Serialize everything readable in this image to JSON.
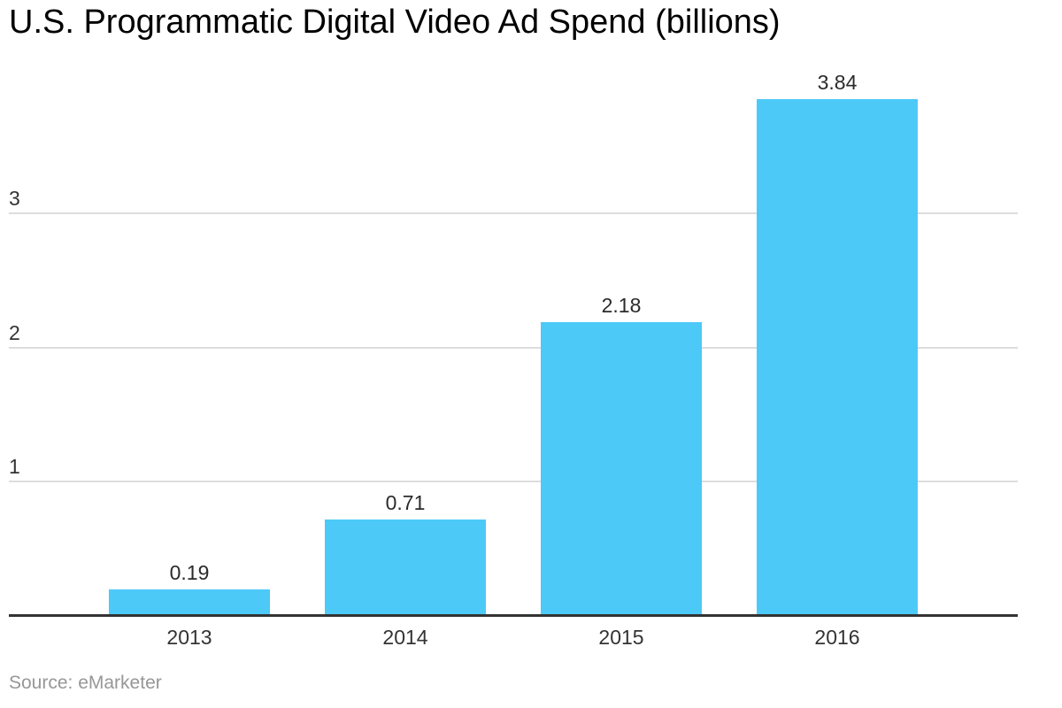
{
  "title": "U.S. Programmatic Digital Video Ad Spend (billions)",
  "source": "Source: eMarketer",
  "chart_data": {
    "type": "bar",
    "categories": [
      "2013",
      "2014",
      "2015",
      "2016"
    ],
    "values": [
      0.19,
      0.71,
      2.18,
      3.84
    ],
    "value_labels": [
      "0.19",
      "0.71",
      "2.18",
      "3.84"
    ],
    "title": "U.S. Programmatic Digital Video Ad Spend (billions)",
    "xlabel": "",
    "ylabel": "",
    "yticks": [
      1,
      2,
      3
    ],
    "ytick_labels": [
      "1",
      "2",
      "3"
    ],
    "ylim": [
      0,
      3.9
    ],
    "grid": true,
    "legend": false,
    "source_text": "Source: eMarketer",
    "colors": {
      "bar": "#4DC9F8",
      "axis": "#333333",
      "gridline": "#DDDDDD",
      "tick_text": "#333333",
      "value_text": "#2B2B2B",
      "title_text": "#000000",
      "source_text": "#979797"
    }
  }
}
